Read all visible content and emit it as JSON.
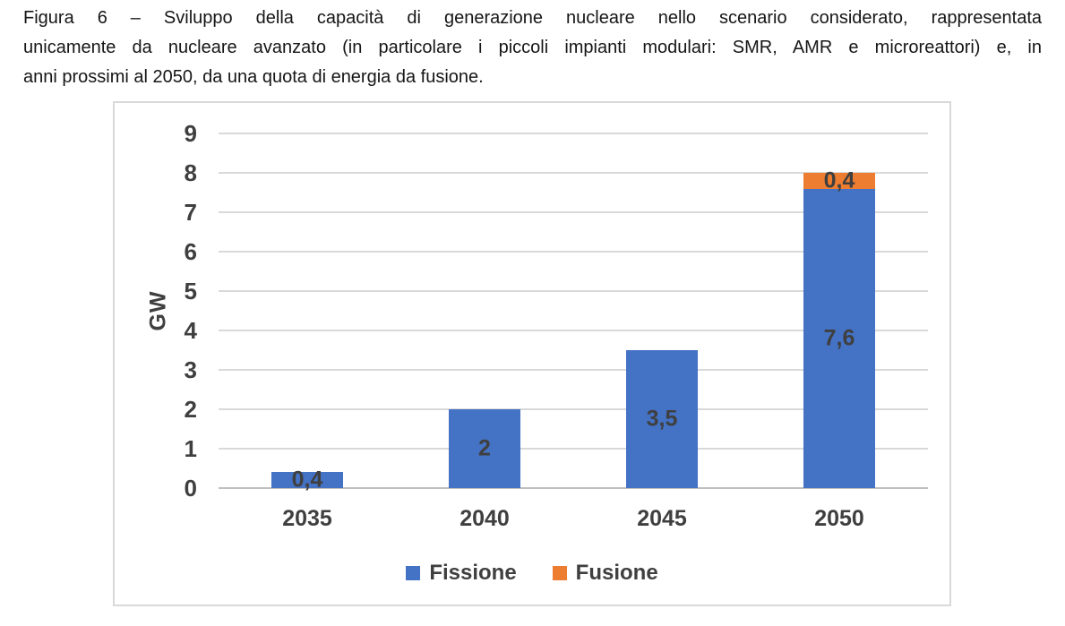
{
  "caption": {
    "lines": [
      "Figura 6 – Sviluppo della capacità di generazione nucleare nello scenario considerato, rappresentata",
      "unicamente da nucleare avanzato (in particolare i piccoli impianti modulari: SMR, AMR e microreattori) e, in",
      "anni prossimi al 2050, da una quota di energia da fusione."
    ]
  },
  "chart_data": {
    "type": "bar",
    "stacked": true,
    "categories": [
      "2035",
      "2040",
      "2045",
      "2050"
    ],
    "series": [
      {
        "name": "Fissione",
        "color": "#4472C4",
        "values": [
          0.4,
          2,
          3.5,
          7.6
        ],
        "value_labels": [
          "0,4",
          "2",
          "3,5",
          "7,6"
        ]
      },
      {
        "name": "Fusione",
        "color": "#ED7D31",
        "values": [
          0,
          0,
          0,
          0.4
        ],
        "value_labels": [
          "",
          "",
          "",
          "0,4"
        ]
      }
    ],
    "title": "",
    "xlabel": "",
    "ylabel": "GW",
    "ylim": [
      0,
      9
    ],
    "ytick_step": 1,
    "ytick_labels": [
      "0",
      "1",
      "2",
      "3",
      "4",
      "5",
      "6",
      "7",
      "8",
      "9"
    ],
    "grid": true,
    "legend_position": "bottom"
  }
}
